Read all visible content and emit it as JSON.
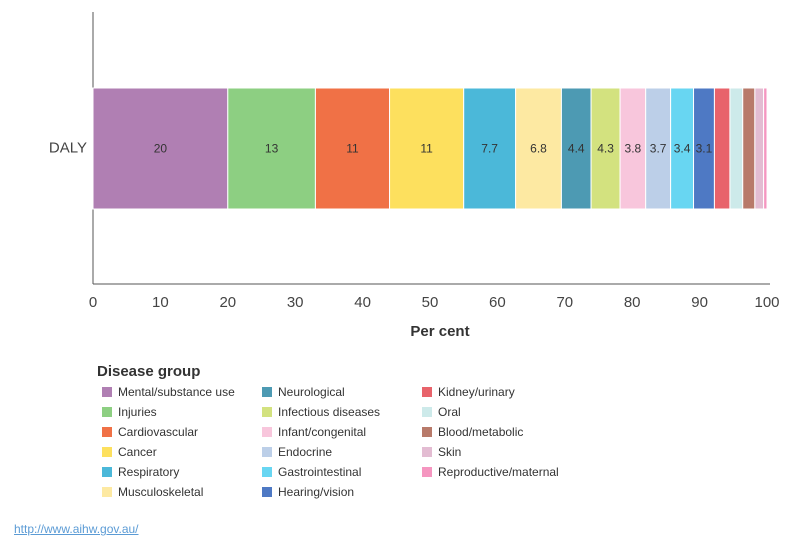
{
  "chart_data": {
    "type": "bar",
    "orientation": "horizontal",
    "stacked": true,
    "categories": [
      "DALY"
    ],
    "series": [
      {
        "name": "Mental/substance use",
        "color": "#b07fb3",
        "values": [
          20
        ]
      },
      {
        "name": "Injuries",
        "color": "#8dcf82",
        "values": [
          13
        ]
      },
      {
        "name": "Cardiovascular",
        "color": "#f07146",
        "values": [
          11
        ]
      },
      {
        "name": "Cancer",
        "color": "#fde05e",
        "values": [
          11
        ]
      },
      {
        "name": "Respiratory",
        "color": "#4bb8d9",
        "values": [
          7.7
        ]
      },
      {
        "name": "Musculoskeletal",
        "color": "#fde9a2",
        "values": [
          6.8
        ]
      },
      {
        "name": "Neurological",
        "color": "#4d9ab3",
        "values": [
          4.4
        ]
      },
      {
        "name": "Infectious diseases",
        "color": "#d3e27f",
        "values": [
          4.3
        ]
      },
      {
        "name": "Infant/congenital",
        "color": "#f8c6dc",
        "values": [
          3.8
        ]
      },
      {
        "name": "Endocrine",
        "color": "#bccfe8",
        "values": [
          3.7
        ]
      },
      {
        "name": "Gastrointestinal",
        "color": "#68d6f2",
        "values": [
          3.4
        ]
      },
      {
        "name": "Hearing/vision",
        "color": "#4e79c4",
        "values": [
          3.1
        ]
      },
      {
        "name": "Kidney/urinary",
        "color": "#e8636b",
        "values": [
          2.3
        ]
      },
      {
        "name": "Oral",
        "color": "#cdeaea",
        "values": [
          1.9
        ]
      },
      {
        "name": "Blood/metabolic",
        "color": "#b87a6a",
        "values": [
          1.8
        ]
      },
      {
        "name": "Skin",
        "color": "#e3bcd2",
        "values": [
          1.3
        ]
      },
      {
        "name": "Reproductive/maternal",
        "color": "#f596c0",
        "values": [
          0.5
        ]
      }
    ],
    "xlim": [
      0,
      100
    ],
    "xticks": [
      0,
      10,
      20,
      30,
      40,
      50,
      60,
      70,
      80,
      90,
      100
    ],
    "x_label": "Per cent",
    "legend_title": "Disease group"
  },
  "footer": {
    "link": "http://www.aihw.gov.au/"
  }
}
